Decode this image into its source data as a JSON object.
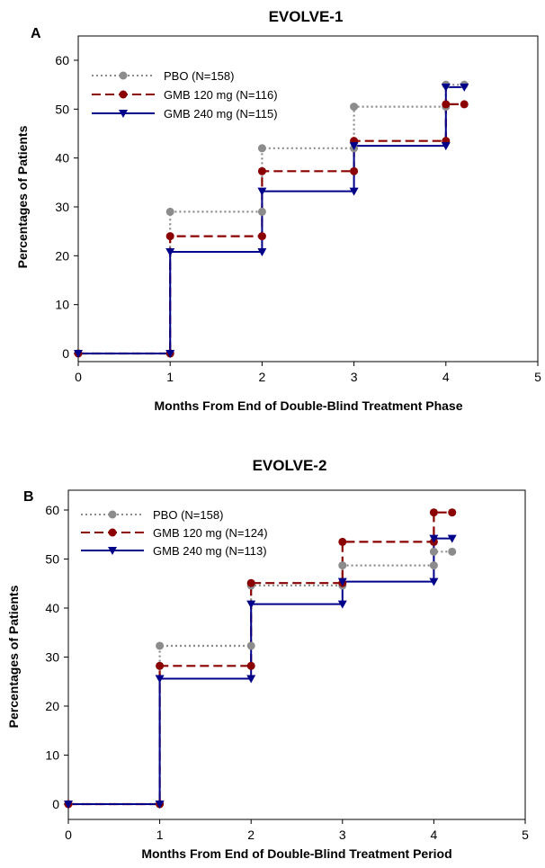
{
  "chart_data": [
    {
      "type": "line",
      "step": true,
      "panel_label": "A",
      "title": "EVOLVE-1",
      "xlabel": "Months From End of Double-Blind Treatment Phase",
      "ylabel": "Percentages of Patients",
      "xlim": [
        0,
        5
      ],
      "ylim": [
        0,
        60
      ],
      "xticks": [
        "0",
        "1",
        "2",
        "3",
        "4",
        "5"
      ],
      "yticks": [
        "0",
        "10",
        "20",
        "30",
        "40",
        "50",
        "60"
      ],
      "legend_position": "top-left",
      "series": [
        {
          "name": "PBO (N=158)",
          "style": "dotted",
          "marker": "circle",
          "color": "#8c8c8c",
          "points": [
            [
              0,
              0
            ],
            [
              1,
              0
            ],
            [
              1,
              29
            ],
            [
              2,
              29
            ],
            [
              2,
              42
            ],
            [
              3,
              42
            ],
            [
              3,
              50.5
            ],
            [
              4,
              50.5
            ],
            [
              4,
              55
            ],
            [
              4.2,
              55
            ]
          ]
        },
        {
          "name": "GMB 120 mg (N=116)",
          "style": "dashed",
          "marker": "circle",
          "color": "#8b0000",
          "points": [
            [
              0,
              0
            ],
            [
              1,
              0
            ],
            [
              1,
              24
            ],
            [
              2,
              24
            ],
            [
              2,
              37.3
            ],
            [
              3,
              37.3
            ],
            [
              3,
              43.5
            ],
            [
              4,
              43.5
            ],
            [
              4,
              51
            ],
            [
              4.2,
              51
            ]
          ]
        },
        {
          "name": "GMB 240 mg (N=115)",
          "style": "solid",
          "marker": "triangle-down",
          "color": "#00008b",
          "points": [
            [
              0,
              0
            ],
            [
              1,
              0
            ],
            [
              1,
              20.8
            ],
            [
              2,
              20.8
            ],
            [
              2,
              33.2
            ],
            [
              3,
              33.2
            ],
            [
              3,
              42.5
            ],
            [
              4,
              42.5
            ],
            [
              4,
              54.5
            ],
            [
              4.2,
              54.5
            ]
          ]
        }
      ]
    },
    {
      "type": "line",
      "step": true,
      "panel_label": "B",
      "title": "EVOLVE-2",
      "xlabel": "Months From End of Double-Blind Treatment Period",
      "ylabel": "Percentages of Patients",
      "xlim": [
        0,
        5
      ],
      "ylim": [
        0,
        60
      ],
      "xticks": [
        "0",
        "1",
        "2",
        "3",
        "4",
        "5"
      ],
      "yticks": [
        "0",
        "10",
        "20",
        "30",
        "40",
        "50",
        "60"
      ],
      "legend_position": "top-left",
      "series": [
        {
          "name": "PBO (N=158)",
          "style": "dotted",
          "marker": "circle",
          "color": "#8c8c8c",
          "points": [
            [
              0,
              0
            ],
            [
              1,
              0
            ],
            [
              1,
              32.3
            ],
            [
              2,
              32.3
            ],
            [
              2,
              44.6
            ],
            [
              3,
              44.6
            ],
            [
              3,
              48.7
            ],
            [
              4,
              48.7
            ],
            [
              4,
              51.5
            ],
            [
              4.2,
              51.5
            ]
          ]
        },
        {
          "name": "GMB 120 mg (N=124)",
          "style": "dashed",
          "marker": "circle",
          "color": "#8b0000",
          "points": [
            [
              0,
              0
            ],
            [
              1,
              0
            ],
            [
              1,
              28.2
            ],
            [
              2,
              28.2
            ],
            [
              2,
              45.1
            ],
            [
              3,
              45.1
            ],
            [
              3,
              53.5
            ],
            [
              4,
              53.5
            ],
            [
              4,
              59.5
            ],
            [
              4.2,
              59.5
            ]
          ]
        },
        {
          "name": "GMB 240 mg (N=113)",
          "style": "solid",
          "marker": "triangle-down",
          "color": "#00008b",
          "points": [
            [
              0,
              0
            ],
            [
              1,
              0
            ],
            [
              1,
              25.6
            ],
            [
              2,
              25.6
            ],
            [
              2,
              40.8
            ],
            [
              3,
              40.8
            ],
            [
              3,
              45.4
            ],
            [
              4,
              45.4
            ],
            [
              4,
              54.2
            ],
            [
              4.2,
              54.2
            ]
          ]
        }
      ]
    }
  ]
}
